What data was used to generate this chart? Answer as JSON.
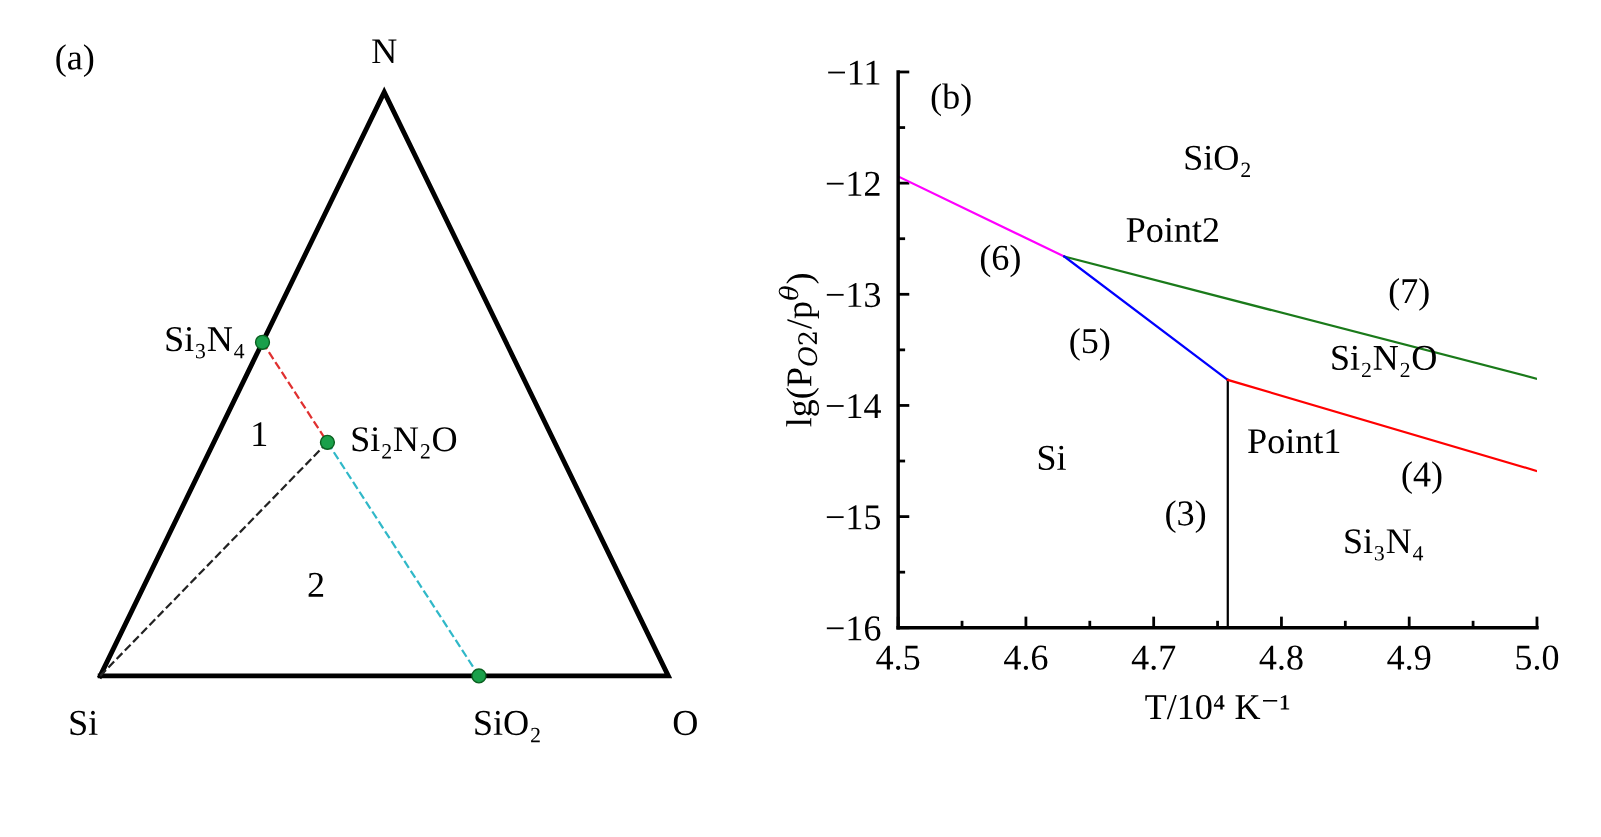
{
  "chart_data": [
    {
      "type": "other",
      "title": "(a)",
      "annotations": [
        "N",
        "Si",
        "O",
        "Si₃N₄",
        "Si₂N₂O",
        "SiO₂",
        "1",
        "2"
      ]
    },
    {
      "type": "line",
      "title": "(b)",
      "xlabel": "T/10⁴ K⁻¹",
      "ylabel": "lg(P$_{O2}$/p$^{θ}$)",
      "xlim": [
        4.5,
        5.0
      ],
      "ylim": [
        -16,
        -11
      ],
      "xticks": [
        4.5,
        4.6,
        4.7,
        4.8,
        4.9,
        {
          "value": 5,
          "label": "5.0"
        }
      ],
      "yticks": [
        {
          "value": -16,
          "label": "−16"
        },
        {
          "value": -15,
          "label": "−15"
        },
        {
          "value": -14,
          "label": "−14"
        },
        {
          "value": -13,
          "label": "−13"
        },
        {
          "value": -12,
          "label": "−12"
        },
        {
          "value": -11,
          "label": "−11"
        }
      ],
      "grid": false,
      "legend": false,
      "marker": "none",
      "line_style": "solid",
      "series": [
        {
          "color": "#ff00ff",
          "x": [
            4.5,
            4.63
          ],
          "values": [
            -11.94,
            -12.66
          ]
        },
        {
          "color": "#1a7a1a",
          "x": [
            4.63,
            5.0
          ],
          "values": [
            -12.66,
            -13.76
          ]
        },
        {
          "color": "#0000ff",
          "x": [
            4.63,
            4.758
          ],
          "values": [
            -12.66,
            -13.77
          ]
        },
        {
          "color": "#000000",
          "x": [
            4.758,
            4.758
          ],
          "values": [
            -13.77,
            -16
          ]
        },
        {
          "color": "#ff0000",
          "x": [
            4.758,
            5.0
          ],
          "values": [
            -13.77,
            -14.59
          ]
        }
      ],
      "annotations": [
        "SiO₂",
        "Point2",
        "(6)",
        "(7)",
        "(5)",
        "Si₂N₂O",
        "Point1",
        "Si",
        "(4)",
        "(3)",
        "Si₃N₄"
      ]
    }
  ]
}
